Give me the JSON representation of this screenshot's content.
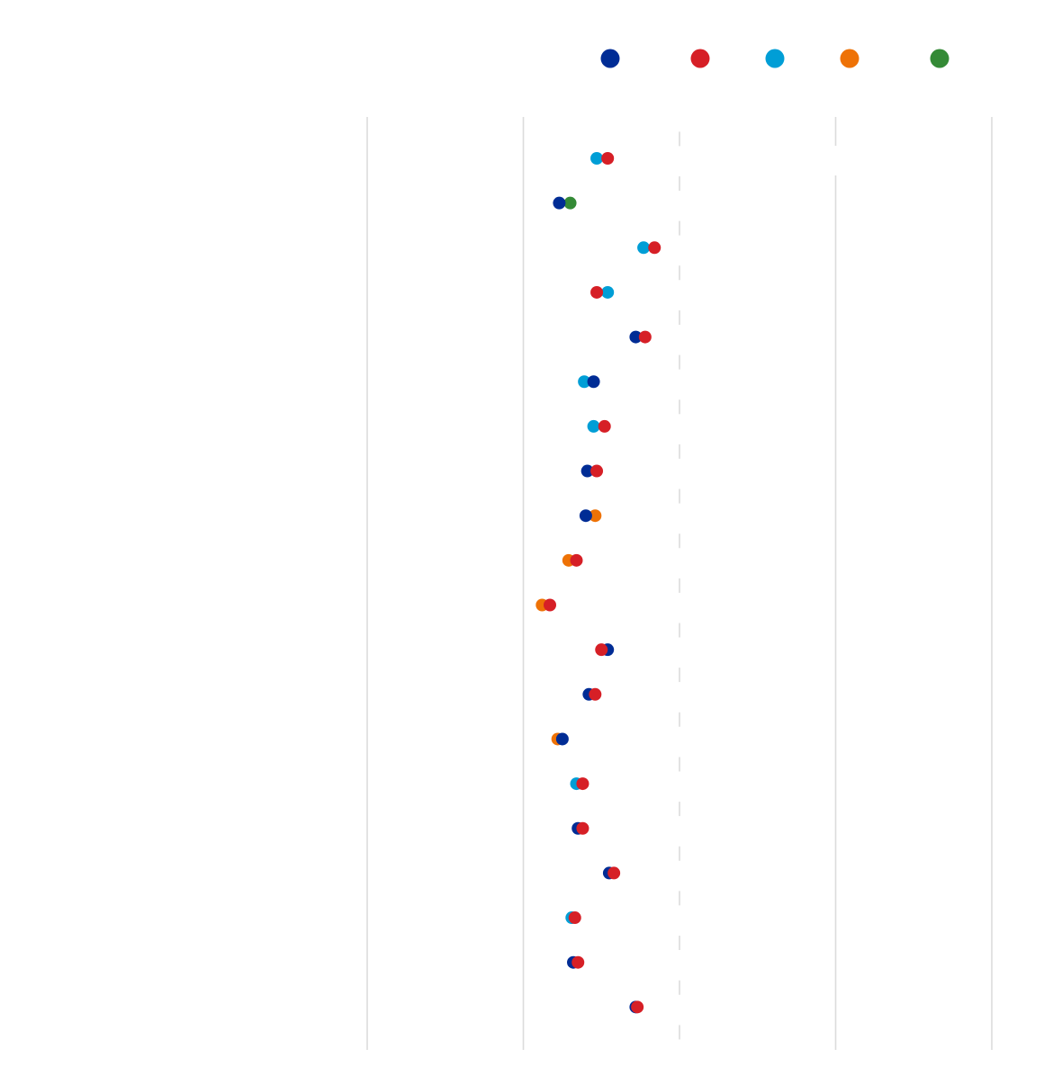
{
  "chart_data": {
    "type": "scatter",
    "title": "",
    "xlabel": "",
    "ylabel": "",
    "grid": true,
    "legend_position": "top-right",
    "categories": [
      "",
      "",
      "",
      "",
      "",
      "",
      "",
      "",
      "",
      "",
      "",
      "",
      "",
      "",
      "",
      "",
      "",
      "",
      "",
      ""
    ],
    "series": [
      {
        "color": "#002c95",
        "values": [
          null,
          1.23,
          null,
          null,
          1.72,
          1.45,
          null,
          1.41,
          1.4,
          null,
          null,
          1.54,
          1.42,
          1.25,
          null,
          1.35,
          1.55,
          null,
          1.32,
          1.72
        ]
      },
      {
        "color": "#d61f26",
        "values": [
          1.54,
          null,
          1.84,
          1.47,
          1.78,
          null,
          1.52,
          1.47,
          null,
          1.34,
          1.17,
          1.5,
          1.46,
          null,
          1.38,
          1.38,
          1.58,
          1.33,
          1.35,
          1.73
        ]
      },
      {
        "color": "#009ed6",
        "values": [
          1.47,
          null,
          1.77,
          1.54,
          null,
          1.39,
          1.45,
          null,
          null,
          null,
          null,
          null,
          null,
          null,
          1.34,
          null,
          null,
          1.31,
          null,
          null
        ]
      },
      {
        "color": "#ee7206",
        "values": [
          null,
          null,
          null,
          null,
          null,
          null,
          null,
          null,
          1.46,
          1.29,
          1.12,
          null,
          null,
          1.22,
          null,
          null,
          null,
          null,
          null,
          null
        ]
      },
      {
        "color": "#348a36",
        "values": [
          null,
          1.3,
          null,
          null,
          null,
          null,
          null,
          null,
          null,
          null,
          null,
          null,
          null,
          null,
          null,
          null,
          null,
          null,
          null,
          null
        ]
      }
    ],
    "xlim": [
      0,
      4
    ],
    "xticks": [
      0,
      1,
      2,
      3,
      4
    ],
    "dashed_reference_x": 2
  }
}
